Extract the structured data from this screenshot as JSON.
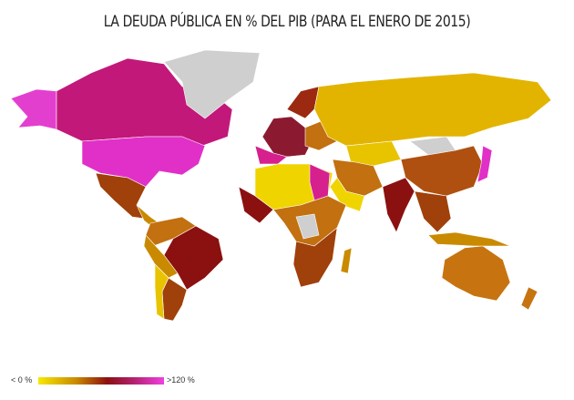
{
  "title": "LA DEUDA PÚBLICA EN % DEL PIB (PARA EL ENERO DE 2015)",
  "legend": {
    "min_label": "< 0 %",
    "max_label": ">120 %"
  }
}
